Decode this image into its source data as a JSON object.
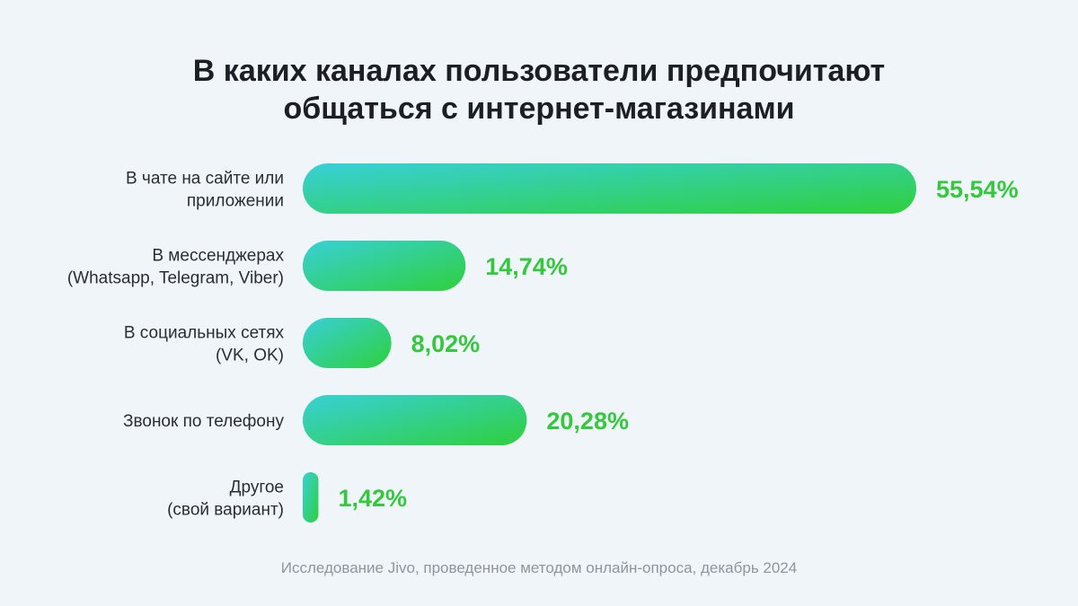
{
  "title_line1": "В каких каналах пользователи предпочитают",
  "title_line2": "общаться с интернет-магазинами",
  "footer": "Исследование Jivo, проведенное методом онлайн-опроса, декабрь 2024",
  "colors": {
    "bar_start": "#38d0d8",
    "bar_end": "#2fd03c",
    "value": "#34c83c",
    "background": "#f0f5fa"
  },
  "chart_data": {
    "type": "bar",
    "orientation": "horizontal",
    "title": "В каких каналах пользователи предпочитают общаться с интернет-магазинами",
    "categories": [
      [
        "В чате на сайте или",
        "приложении"
      ],
      [
        "В мессенджерах",
        "(Whatsapp, Telegram, Viber)"
      ],
      [
        "В социальных сетях",
        "(VK, OK)"
      ],
      [
        "Звонок по телефону"
      ],
      [
        "Другое",
        "(свой вариант)"
      ]
    ],
    "values": [
      55.54,
      14.74,
      8.02,
      20.28,
      1.42
    ],
    "value_labels": [
      "55,54%",
      "14,74%",
      "8,02%",
      "20,28%",
      "1,42%"
    ],
    "unit": "%",
    "xlim": [
      0,
      55.54
    ],
    "grid": false,
    "legend": "none"
  }
}
